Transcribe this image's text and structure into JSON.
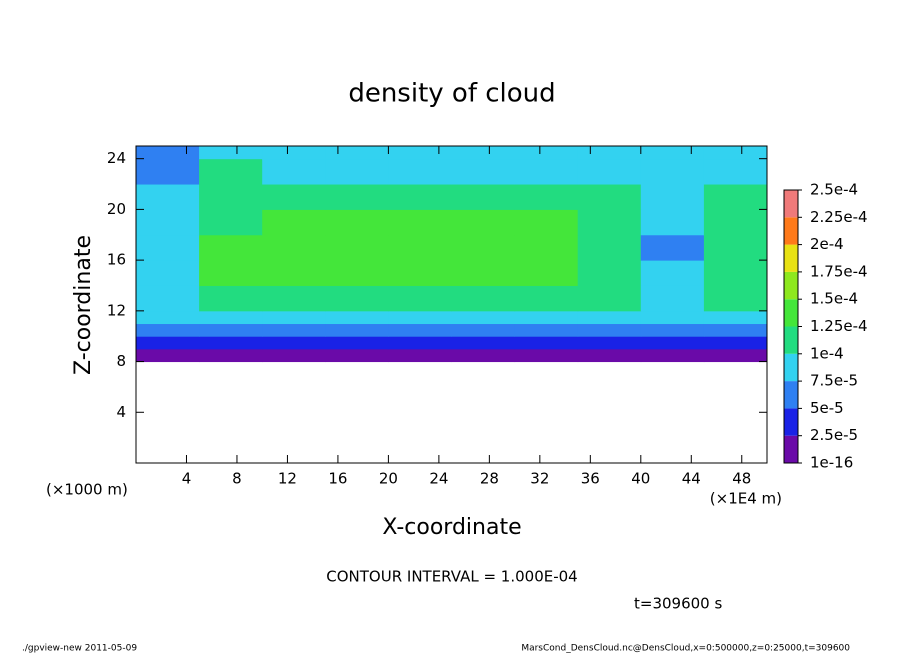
{
  "chart_data": {
    "type": "heatmap",
    "title": "density of cloud",
    "x_label": "X-coordinate",
    "y_label": "Z-coordinate",
    "x_unit": "(×1E4 m)",
    "y_unit": "(×1000 m)",
    "contour_note": "CONTOUR INTERVAL = 1.000E-04",
    "time_note": "t=309600 s",
    "footer_left": "./gpview-new  2011-05-09",
    "footer_right": "MarsCond_DensCloud.nc@DensCloud,x=0:500000,z=0:25000,t=309600",
    "xlim": [
      0,
      50
    ],
    "ylim": [
      0,
      25
    ],
    "xticks": [
      4,
      8,
      12,
      16,
      20,
      24,
      28,
      32,
      36,
      40,
      44,
      48
    ],
    "yticks": [
      4,
      8,
      12,
      16,
      20,
      24
    ],
    "x_edges": [
      0,
      5,
      10,
      15,
      20,
      25,
      30,
      35,
      40,
      45,
      50
    ],
    "y_edges": [
      0,
      8,
      9,
      10,
      11,
      12,
      14,
      16,
      18,
      20,
      22,
      24,
      25
    ],
    "values": [
      [
        null,
        null,
        null,
        null,
        null,
        null,
        null,
        null,
        null,
        null
      ],
      [
        1e-05,
        1e-05,
        1e-05,
        1e-05,
        1e-05,
        1e-05,
        1e-05,
        1e-05,
        1e-05,
        1e-05
      ],
      [
        3e-05,
        3.5e-05,
        3.5e-05,
        3.5e-05,
        3.5e-05,
        3.5e-05,
        3.5e-05,
        3.5e-05,
        4e-05,
        4e-05
      ],
      [
        6e-05,
        6.5e-05,
        6.5e-05,
        7e-05,
        6.5e-05,
        7e-05,
        6.5e-05,
        7e-05,
        7e-05,
        6e-05
      ],
      [
        8e-05,
        9e-05,
        9e-05,
        9e-05,
        9e-05,
        9e-05,
        9e-05,
        9e-05,
        8e-05,
        8e-05
      ],
      [
        8e-05,
        0.00011,
        0.00011,
        0.00011,
        0.00011,
        0.00011,
        0.00011,
        0.00011,
        9e-05,
        0.0001
      ],
      [
        9e-05,
        0.00013,
        0.00013,
        0.00013,
        0.00013,
        0.00013,
        0.00013,
        0.00012,
        8e-05,
        0.00012
      ],
      [
        9e-05,
        0.00013,
        0.00014,
        0.000135,
        0.000135,
        0.000135,
        0.000135,
        0.00012,
        7e-05,
        0.00012
      ],
      [
        9e-05,
        0.00012,
        0.00013,
        0.00013,
        0.00013,
        0.00013,
        0.00013,
        0.00011,
        8e-05,
        0.00011
      ],
      [
        8e-05,
        0.00012,
        0.00012,
        0.00012,
        0.00012,
        0.00012,
        0.00012,
        0.00011,
        9e-05,
        0.00011
      ],
      [
        7e-05,
        0.0001,
        9e-05,
        9e-05,
        9e-05,
        9e-05,
        9e-05,
        9e-05,
        9e-05,
        9e-05
      ],
      [
        5e-05,
        8e-05,
        8e-05,
        8e-05,
        8e-05,
        8e-05,
        8e-05,
        8e-05,
        8e-05,
        8e-05
      ]
    ],
    "colorbar_ticks": [
      {
        "value": 1e-16,
        "label": "1e-16"
      },
      {
        "value": 2.5e-05,
        "label": "2.5e-5"
      },
      {
        "value": 5e-05,
        "label": "5e-5"
      },
      {
        "value": 7.5e-05,
        "label": "7.5e-5"
      },
      {
        "value": 0.0001,
        "label": "1e-4"
      },
      {
        "value": 0.000125,
        "label": "1.25e-4"
      },
      {
        "value": 0.00015,
        "label": "1.5e-4"
      },
      {
        "value": 0.000175,
        "label": "1.75e-4"
      },
      {
        "value": 0.0002,
        "label": "2e-4"
      },
      {
        "value": 0.000225,
        "label": "2.25e-4"
      },
      {
        "value": 0.00025,
        "label": "2.5e-4"
      }
    ],
    "colors": [
      "#6a0aa8",
      "#1a22e6",
      "#2f80f2",
      "#33d2f0",
      "#22dc80",
      "#44e63a",
      "#8ee81e",
      "#e8e214",
      "#ff7a1a",
      "#f07a7a"
    ]
  }
}
